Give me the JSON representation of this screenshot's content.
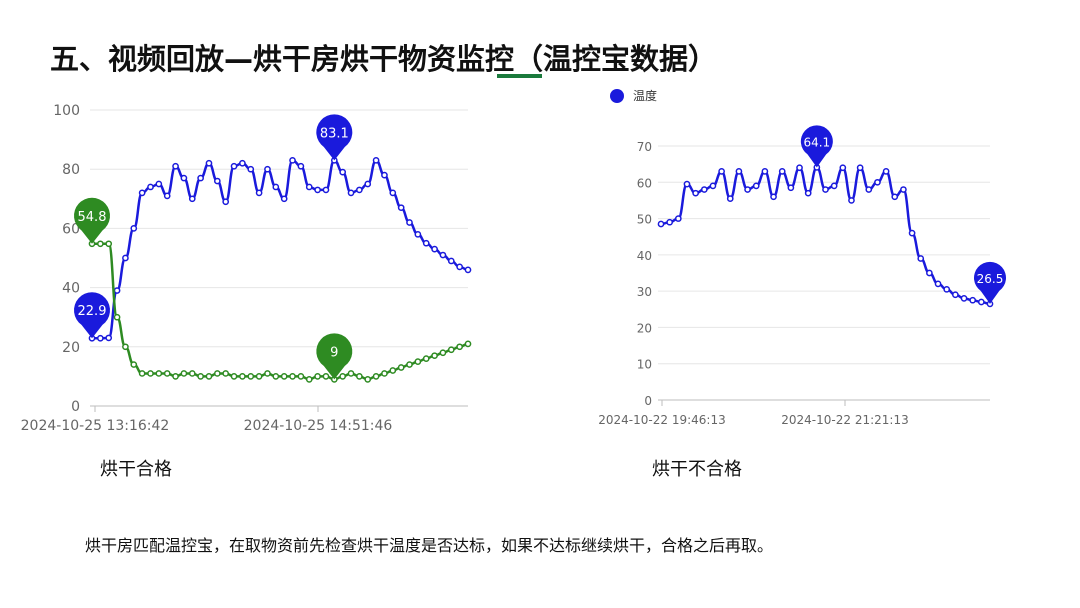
{
  "slide": {
    "title": "五、视频回放—烘干房烘干物资监控（温控宝数据）",
    "caption_left": "烘干合格",
    "caption_right": "烘干不合格",
    "body": "烘干房匹配温控宝，在取物资前先检查烘干温度是否达标，如果不达标继续烘干，合格之后再取。"
  },
  "chart_data": [
    {
      "type": "line",
      "title": "",
      "xlabel": "",
      "ylabel": "",
      "ylim": [
        0,
        100
      ],
      "yticks": [
        "0",
        "20",
        "40",
        "60",
        "80",
        "100"
      ],
      "xtick_labels": [
        "2024-10-25 13:16:42",
        "2024-10-25 14:51:46"
      ],
      "grid": true,
      "legend": "none",
      "series": [
        {
          "color": "#1a1adc",
          "values": [
            22.9,
            22.9,
            23,
            39,
            50,
            60,
            72,
            74,
            75,
            71,
            81,
            77,
            70,
            77,
            82,
            76,
            69,
            81,
            82,
            80,
            72,
            80,
            74,
            70,
            83,
            81,
            74,
            73,
            73,
            83,
            79,
            72,
            73,
            75,
            83,
            78,
            72,
            67,
            62,
            58,
            55,
            53,
            51,
            49,
            47,
            46
          ],
          "marker_labels": [
            {
              "index": 0,
              "text": "22.9"
            },
            {
              "index": 29,
              "text": "83.1"
            }
          ]
        },
        {
          "color": "#2e8b22",
          "values": [
            54.8,
            54.8,
            54.8,
            30,
            20,
            14,
            11,
            11,
            11,
            11,
            10,
            11,
            11,
            10,
            10,
            11,
            11,
            10,
            10,
            10,
            10,
            11,
            10,
            10,
            10,
            10,
            9,
            10,
            10,
            9,
            10,
            11,
            10,
            9,
            10,
            11,
            12,
            13,
            14,
            15,
            16,
            17,
            18,
            19,
            20,
            21
          ],
          "marker_labels": [
            {
              "index": 0,
              "text": "54.8"
            },
            {
              "index": 29,
              "text": "9"
            }
          ]
        }
      ]
    },
    {
      "type": "line",
      "title": "",
      "xlabel": "",
      "ylabel": "",
      "ylim": [
        0,
        70
      ],
      "yticks": [
        "0",
        "10",
        "20",
        "30",
        "40",
        "50",
        "60",
        "70"
      ],
      "xtick_labels": [
        "2024-10-22 19:46:13",
        "2024-10-22 21:21:13"
      ],
      "grid": true,
      "legend": "top-left",
      "series": [
        {
          "name": "温度",
          "color": "#1a1adc",
          "values": [
            48.5,
            49,
            50,
            59.5,
            57,
            58,
            59,
            63,
            55.5,
            63,
            58,
            59,
            63,
            56,
            63,
            58.5,
            64,
            57,
            64.1,
            58,
            59,
            64,
            55,
            64,
            58,
            60,
            63,
            56,
            58,
            46,
            39,
            35,
            32,
            30.5,
            29,
            28,
            27.5,
            27,
            26.5
          ],
          "marker_labels": [
            {
              "index": 18,
              "text": "64.1"
            },
            {
              "index": 38,
              "text": "26.5"
            }
          ]
        }
      ]
    }
  ]
}
